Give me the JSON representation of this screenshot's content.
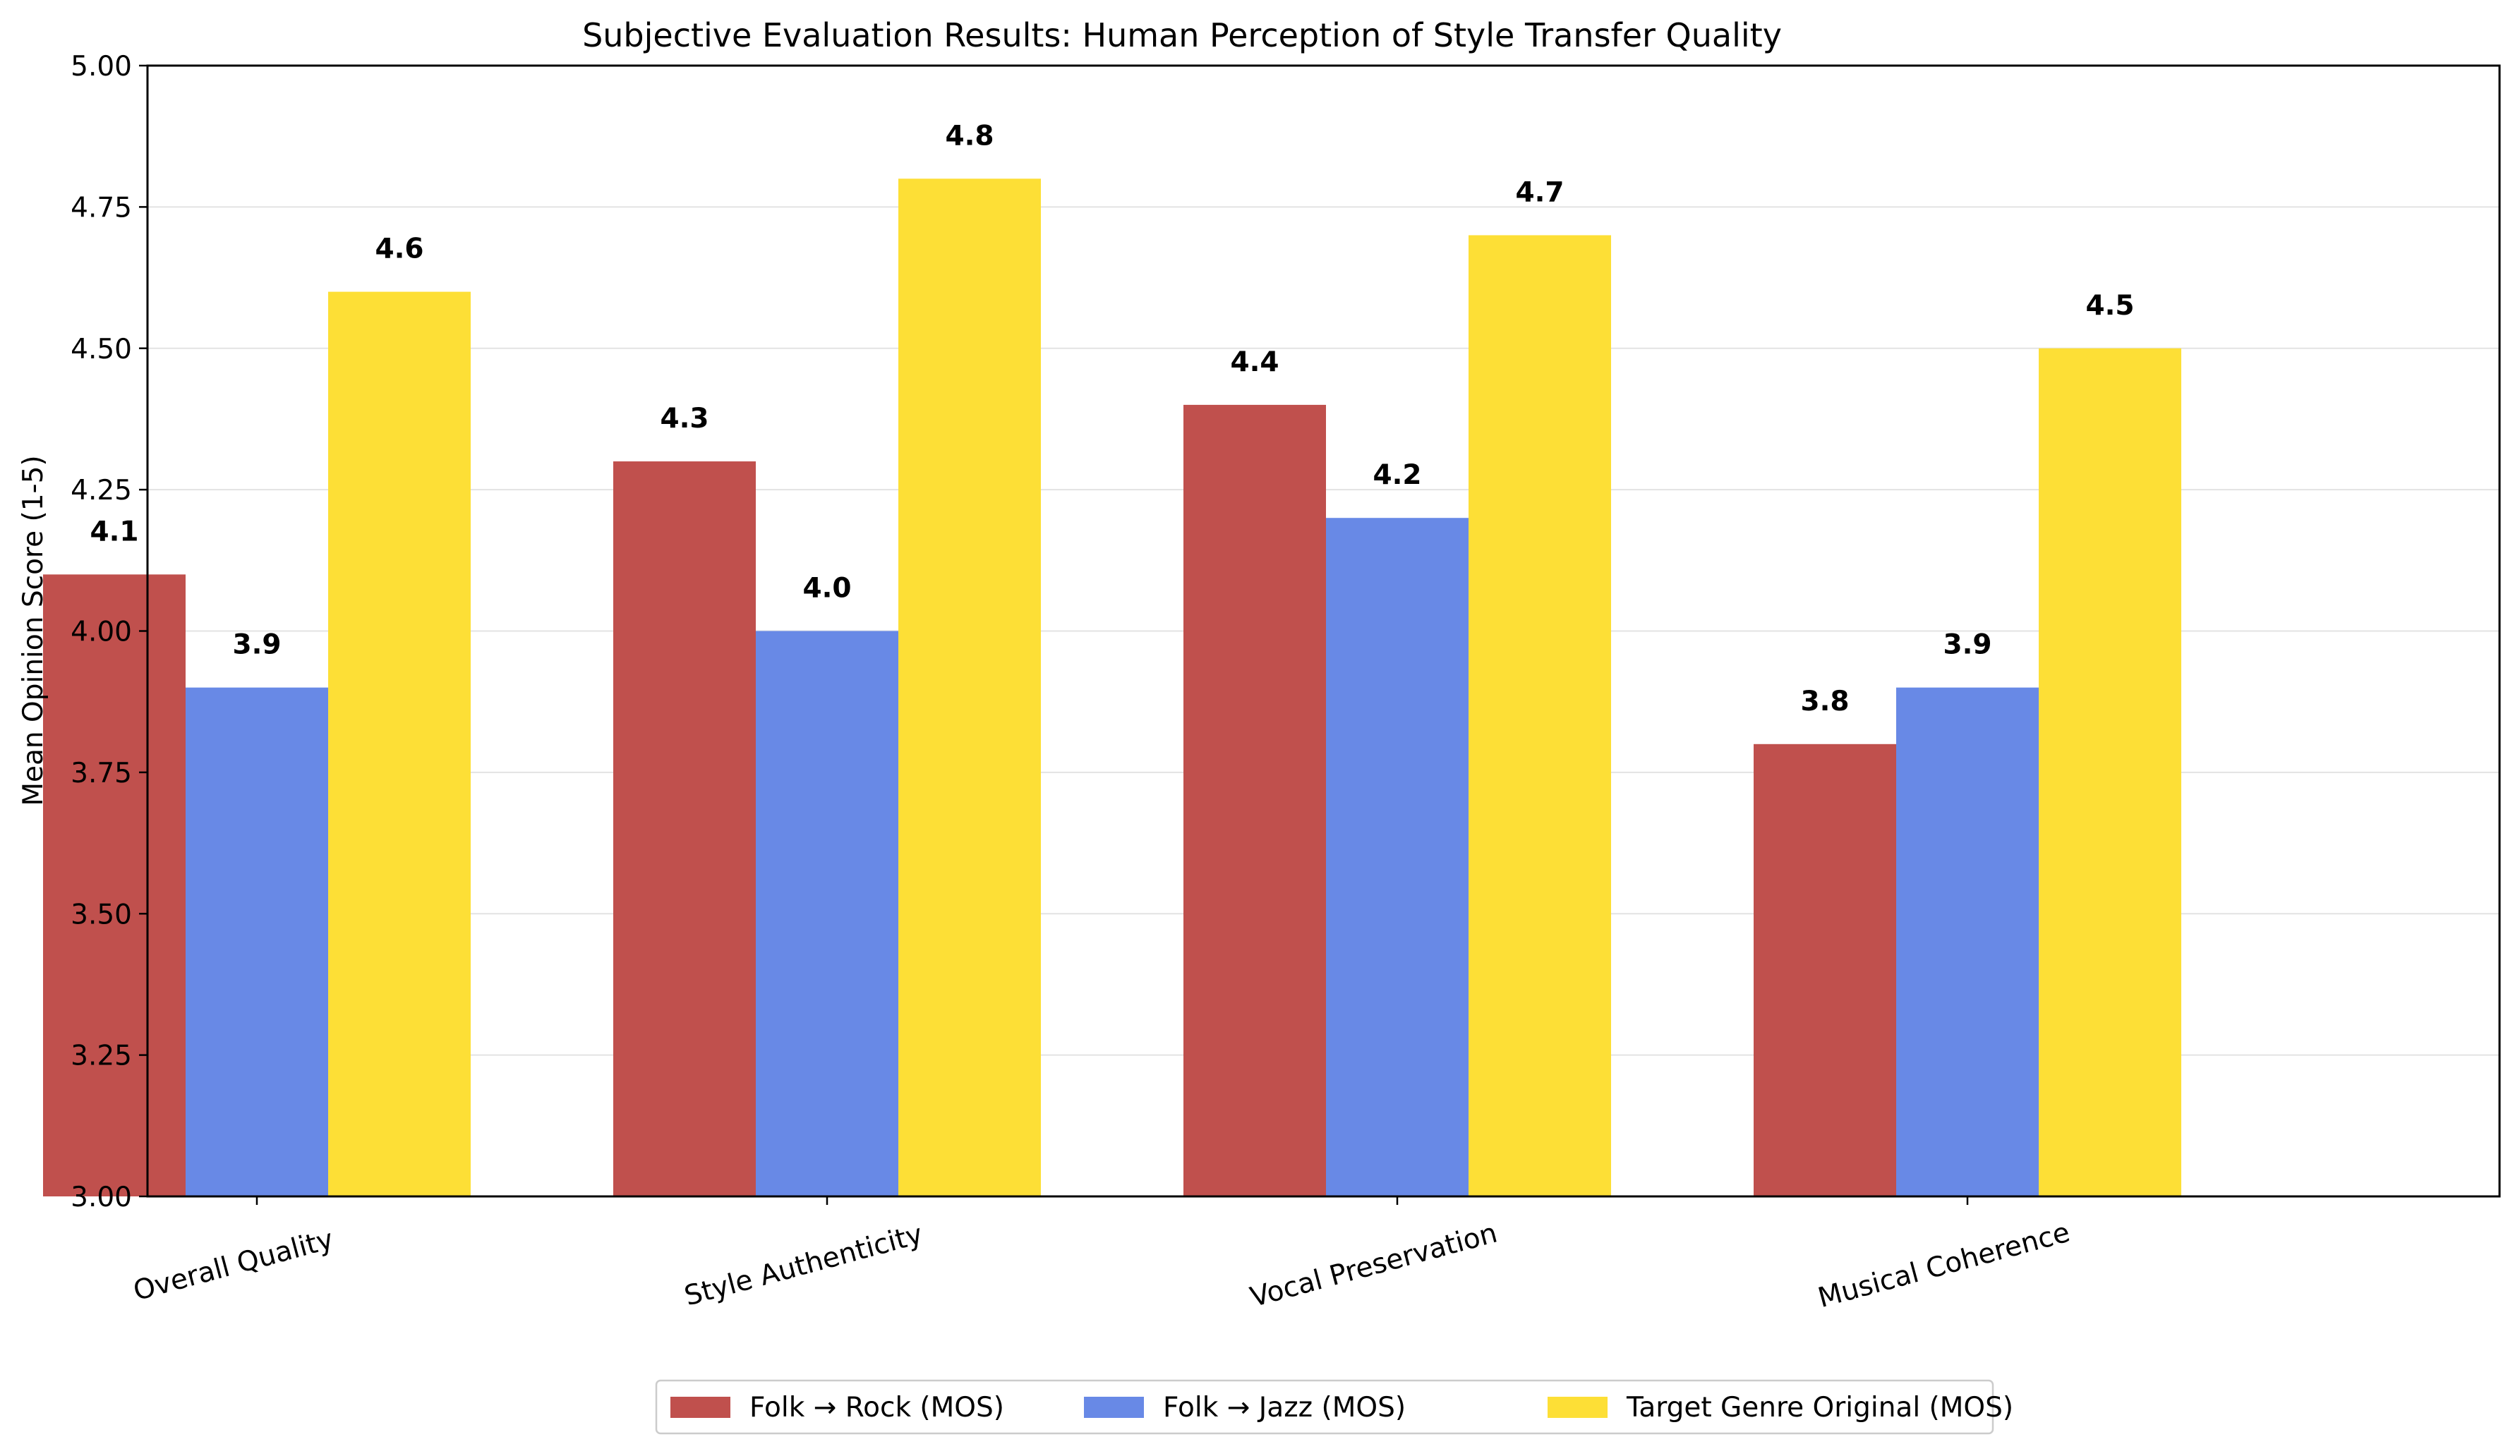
{
  "chart_data": {
    "type": "bar",
    "title": "Subjective Evaluation Results: Human Perception of Style Transfer Quality",
    "xlabel": "",
    "ylabel": "Mean Opinion Score (1-5)",
    "ylim": [
      3.0,
      5.0
    ],
    "yticks": [
      "3.00",
      "3.25",
      "3.50",
      "3.75",
      "4.00",
      "4.25",
      "4.50",
      "4.75",
      "5.00"
    ],
    "categories": [
      "Overall Quality",
      "Style Authenticity",
      "Vocal Preservation",
      "Musical Coherence"
    ],
    "series": [
      {
        "name": "Folk → Rock (MOS)",
        "color": "#c0504d",
        "values": [
          4.1,
          4.3,
          4.4,
          3.8
        ],
        "labels": [
          "4.1",
          "4.3",
          "4.4",
          "3.8"
        ]
      },
      {
        "name": "Folk → Jazz (MOS)",
        "color": "#6889e6",
        "values": [
          3.9,
          4.0,
          4.2,
          3.9
        ],
        "labels": [
          "3.9",
          "4.0",
          "4.2",
          "3.9"
        ]
      },
      {
        "name": "Target Genre Original (MOS)",
        "color": "#fddf36",
        "values": [
          4.6,
          4.8,
          4.7,
          4.5
        ],
        "labels": [
          "4.6",
          "4.8",
          "4.7",
          "4.5"
        ]
      }
    ],
    "grid": "horizontal",
    "legend_position": "bottom-center"
  }
}
